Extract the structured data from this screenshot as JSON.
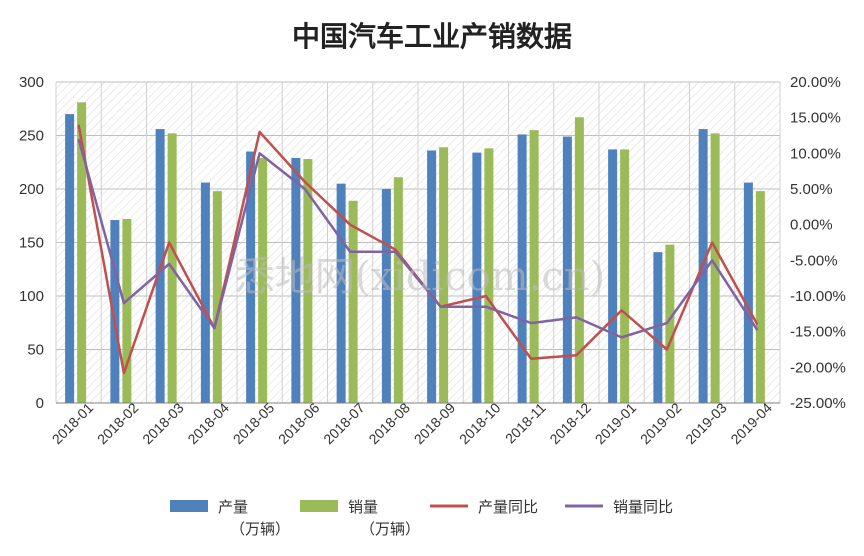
{
  "chart_data": {
    "type": "bar",
    "title": "中国汽车工业产销数据",
    "categories": [
      "2018-01",
      "2018-02",
      "2018-03",
      "2018-04",
      "2018-05",
      "2018-06",
      "2018-07",
      "2018-08",
      "2018-09",
      "2018-10",
      "2018-11",
      "2018-12",
      "2019-01",
      "2019-02",
      "2019-03",
      "2019-04"
    ],
    "y_left": {
      "min": 0,
      "max": 300,
      "ticks": [
        "0",
        "50",
        "100",
        "150",
        "200",
        "250",
        "300"
      ]
    },
    "y_right": {
      "min": -25,
      "max": 20,
      "ticks": [
        "-25.00%",
        "-20.00%",
        "-15.00%",
        "-10.00%",
        "-5.00%",
        "0.00%",
        "5.00%",
        "10.00%",
        "15.00%",
        "20.00%"
      ]
    },
    "grid": true,
    "legend_position": "bottom",
    "series": [
      {
        "name": "产量",
        "name_line2": "（万辆）",
        "kind": "bar",
        "axis": "left",
        "color": "#4F81BD",
        "values": [
          270,
          171,
          256,
          206,
          235,
          229,
          205,
          200,
          236,
          234,
          251,
          249,
          237,
          141,
          256,
          206
        ]
      },
      {
        "name": "销量",
        "name_line2": "（万辆）",
        "kind": "bar",
        "axis": "left",
        "color": "#9BBB59",
        "values": [
          281,
          172,
          252,
          198,
          229,
          228,
          189,
          211,
          239,
          238,
          255,
          267,
          237,
          148,
          252,
          198
        ]
      },
      {
        "name": "产量同比",
        "kind": "line",
        "axis": "right",
        "color": "#C0504D",
        "values": [
          14,
          -20.8,
          -2.5,
          -14.5,
          13,
          6,
          0,
          -3.5,
          -11.5,
          -10,
          -18.8,
          -18.3,
          -12,
          -17.5,
          -2.5,
          -14
        ]
      },
      {
        "name": "销量同比",
        "kind": "line",
        "axis": "right",
        "color": "#8064A2",
        "values": [
          12,
          -11,
          -5.5,
          -14.5,
          10,
          5,
          -3.8,
          -3.8,
          -11.5,
          -11.5,
          -13.8,
          -13,
          -15.8,
          -13.8,
          -5,
          -14.8
        ]
      }
    ],
    "watermark": "悉地网(xidicom.cn)"
  }
}
